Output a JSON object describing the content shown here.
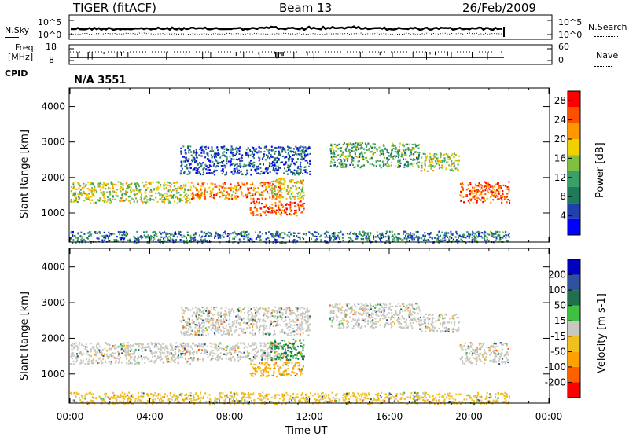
{
  "header": {
    "station": "TIGER (fitACF)",
    "beam": "Beam 13",
    "date": "26/Feb/2009"
  },
  "noise_panel": {
    "left_label": "N.Sky",
    "ticks_left": [
      "10^5",
      "10^0"
    ],
    "ticks_right": [
      "10^5",
      "10^0"
    ],
    "right_label": "N.Search"
  },
  "freq_panel": {
    "left_label_line1": "Freq.",
    "left_label_line2": "[MHz]",
    "ticks_left": [
      "18",
      "8"
    ],
    "ticks_right": [
      "60",
      "0"
    ],
    "right_label": "Nave"
  },
  "cpid": {
    "label": "CPID",
    "value": "N/A 3551"
  },
  "colors": {
    "power": [
      "#0000ff",
      "#2040b0",
      "#1f7a5a",
      "#3aa06a",
      "#7fc040",
      "#f0d000",
      "#ff9800",
      "#ff5000",
      "#ff0000"
    ],
    "velocity": [
      "#ff0000",
      "#ff6000",
      "#ffa000",
      "#f0c020",
      "#c8c8c0",
      "#40c040",
      "#207050",
      "#3050a0",
      "#0000c0"
    ],
    "ground_scatter": "#c8c8c0"
  },
  "chart_data": [
    {
      "type": "heatmap",
      "title": "",
      "xlabel": "Time UT",
      "ylabel": "Slant Range [km]",
      "xlim": [
        "00:00",
        "24:00"
      ],
      "ylim": [
        180,
        4500
      ],
      "x_ticks": [
        "00:00",
        "04:00",
        "08:00",
        "12:00",
        "16:00",
        "20:00",
        "00:00"
      ],
      "y_ticks": [
        1000,
        2000,
        3000,
        4000
      ],
      "colorbar": {
        "label": "Power [dB]",
        "ticks": [
          4,
          8,
          12,
          16,
          20,
          24,
          28
        ],
        "range": [
          0,
          30
        ]
      },
      "data_end_time": "22:00",
      "echo_regions": [
        {
          "t_start": 0.0,
          "t_end": 6.0,
          "range_low": 1300,
          "range_high": 1900,
          "power": 16
        },
        {
          "t_start": 6.0,
          "t_end": 10.5,
          "range_low": 1400,
          "range_high": 1900,
          "power": 22
        },
        {
          "t_start": 9.0,
          "t_end": 11.7,
          "range_low": 950,
          "range_high": 1350,
          "power": 26
        },
        {
          "t_start": 10.0,
          "t_end": 11.7,
          "range_low": 1400,
          "range_high": 2000,
          "power": 18
        },
        {
          "t_start": 5.5,
          "t_end": 12.0,
          "range_low": 2100,
          "range_high": 2900,
          "power": 6
        },
        {
          "t_start": 13.0,
          "t_end": 17.5,
          "range_low": 2300,
          "range_high": 3000,
          "power": 12
        },
        {
          "t_start": 17.5,
          "t_end": 19.5,
          "range_low": 2200,
          "range_high": 2700,
          "power": 16
        },
        {
          "t_start": 19.5,
          "t_end": 22.0,
          "range_low": 1300,
          "range_high": 1900,
          "power": 24
        },
        {
          "t_start": 0.0,
          "t_end": 22.0,
          "range_low": 180,
          "range_high": 500,
          "power": 8
        }
      ]
    },
    {
      "type": "heatmap",
      "title": "",
      "xlabel": "Time UT",
      "ylabel": "Slant Range [km]",
      "xlim": [
        "00:00",
        "24:00"
      ],
      "ylim": [
        180,
        4500
      ],
      "x_ticks": [
        "00:00",
        "04:00",
        "08:00",
        "12:00",
        "16:00",
        "20:00",
        "00:00"
      ],
      "y_ticks": [
        1000,
        2000,
        3000,
        4000
      ],
      "colorbar": {
        "label": "Velocity [m s-1]",
        "ticks": [
          -200,
          -100,
          -50,
          -15,
          15,
          50,
          100,
          200
        ],
        "range": [
          -250,
          250
        ]
      },
      "data_end_time": "22:00",
      "echo_regions": [
        {
          "t_start": 0.0,
          "t_end": 6.0,
          "range_low": 1300,
          "range_high": 1900,
          "velocity": 0
        },
        {
          "t_start": 6.0,
          "t_end": 10.5,
          "range_low": 1400,
          "range_high": 1900,
          "velocity": 0
        },
        {
          "t_start": 9.0,
          "t_end": 11.7,
          "range_low": 950,
          "range_high": 1350,
          "velocity": -60
        },
        {
          "t_start": 10.0,
          "t_end": 11.7,
          "range_low": 1400,
          "range_high": 2000,
          "velocity": 60
        },
        {
          "t_start": 5.5,
          "t_end": 12.0,
          "range_low": 2100,
          "range_high": 2900,
          "velocity": 0
        },
        {
          "t_start": 13.0,
          "t_end": 17.5,
          "range_low": 2300,
          "range_high": 3000,
          "velocity": 0
        },
        {
          "t_start": 17.5,
          "t_end": 19.5,
          "range_low": 2200,
          "range_high": 2700,
          "velocity": 0
        },
        {
          "t_start": 19.5,
          "t_end": 22.0,
          "range_low": 1300,
          "range_high": 1900,
          "velocity": 0
        },
        {
          "t_start": 0.0,
          "t_end": 22.0,
          "range_low": 180,
          "range_high": 500,
          "velocity": -30
        }
      ]
    }
  ]
}
